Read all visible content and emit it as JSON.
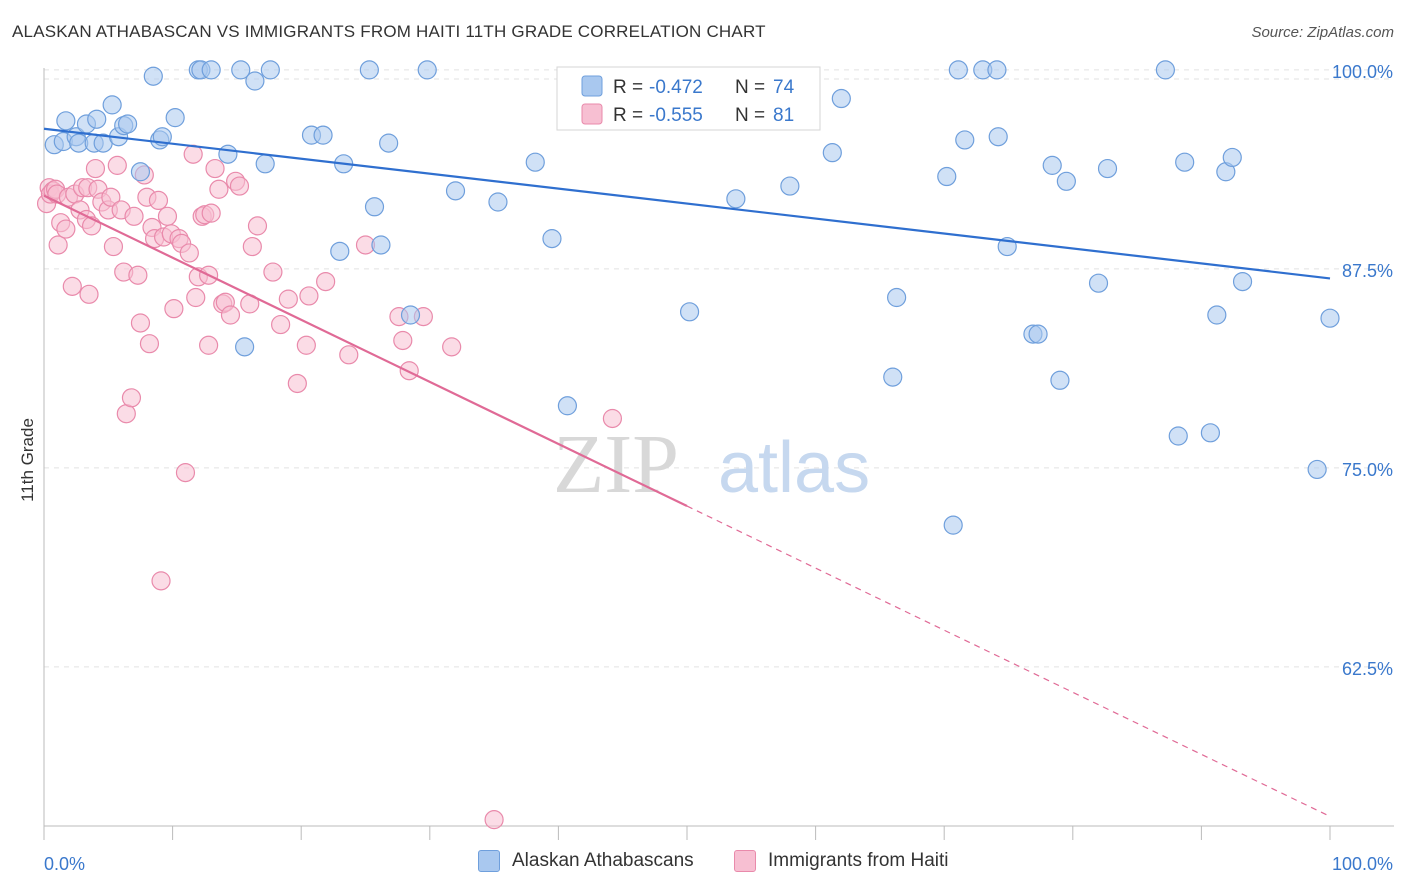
{
  "header": {
    "title": "ALASKAN ATHABASCAN VS IMMIGRANTS FROM HAITI 11TH GRADE CORRELATION CHART",
    "source": "Source: ZipAtlas.com"
  },
  "watermark": {
    "zip": "ZIP",
    "atlas": "atlas"
  },
  "legend": {
    "items": [
      {
        "r_label": "R =",
        "r_value": "-0.472",
        "n_label": "N =",
        "n_value": "74"
      },
      {
        "r_label": "R =",
        "r_value": "-0.555",
        "n_label": "N =",
        "n_value": "81"
      }
    ]
  },
  "colors": {
    "blue_fill": "#a9c8ef",
    "blue_stroke": "#6f9fdc",
    "blue_line": "#2f6fcf",
    "pink_fill": "#f7bfd2",
    "pink_stroke": "#e98aab",
    "pink_line": "#e06a96",
    "axis_text": "#3a78cc",
    "grid": "#e2e2e2"
  },
  "chart_data": {
    "type": "scatter",
    "title": "ALASKAN ATHABASCAN VS IMMIGRANTS FROM HAITI 11TH GRADE CORRELATION CHART",
    "xlabel": "",
    "ylabel": "11th Grade",
    "xlim": [
      0,
      100
    ],
    "ylim": [
      52.5,
      101.5
    ],
    "x_tick_labels": [
      "0.0%",
      "100.0%"
    ],
    "y_ticks": [
      {
        "value": 100,
        "label": "100.0%"
      },
      {
        "value": 87.5,
        "label": "87.5%"
      },
      {
        "value": 75,
        "label": "75.0%"
      },
      {
        "value": 62.5,
        "label": "62.5%"
      }
    ],
    "grid": true,
    "legend_position": "top-center",
    "series": [
      {
        "name": "Alaskan Athabascans",
        "color": "#a9c8ef",
        "trend": {
          "x": [
            0,
            100
          ],
          "y": [
            96.3,
            86.9
          ],
          "dashed_from": null
        },
        "points": [
          [
            0.8,
            95.3
          ],
          [
            1.5,
            95.5
          ],
          [
            1.7,
            96.8
          ],
          [
            2.5,
            95.8
          ],
          [
            2.7,
            95.4
          ],
          [
            3.3,
            96.6
          ],
          [
            3.9,
            95.4
          ],
          [
            4.1,
            96.9
          ],
          [
            4.6,
            95.4
          ],
          [
            5.3,
            97.8
          ],
          [
            5.8,
            95.8
          ],
          [
            6.2,
            96.5
          ],
          [
            6.5,
            96.6
          ],
          [
            7.5,
            93.6
          ],
          [
            8.5,
            99.6
          ],
          [
            9.0,
            95.6
          ],
          [
            9.2,
            95.8
          ],
          [
            10.2,
            97.0
          ],
          [
            12.0,
            100.0
          ],
          [
            12.2,
            100.0
          ],
          [
            14.3,
            94.7
          ],
          [
            15.3,
            100.0
          ],
          [
            16.4,
            99.3
          ],
          [
            17.2,
            94.1
          ],
          [
            17.6,
            100.0
          ],
          [
            20.8,
            95.9
          ],
          [
            21.7,
            95.9
          ],
          [
            23.0,
            88.6
          ],
          [
            23.3,
            94.1
          ],
          [
            25.3,
            100.0
          ],
          [
            25.7,
            91.4
          ],
          [
            26.2,
            89.0
          ],
          [
            26.8,
            95.4
          ],
          [
            28.5,
            84.6
          ],
          [
            29.8,
            100.0
          ],
          [
            32.0,
            92.4
          ],
          [
            35.3,
            91.7
          ],
          [
            38.2,
            94.2
          ],
          [
            39.5,
            89.4
          ],
          [
            40.7,
            78.9
          ],
          [
            15.6,
            82.6
          ],
          [
            50.2,
            84.8
          ],
          [
            53.8,
            91.9
          ],
          [
            58.0,
            92.7
          ],
          [
            62.0,
            98.2
          ],
          [
            61.3,
            94.8
          ],
          [
            66.0,
            80.7
          ],
          [
            66.3,
            85.7
          ],
          [
            70.2,
            93.3
          ],
          [
            70.7,
            71.4
          ],
          [
            71.1,
            100.0
          ],
          [
            71.6,
            95.6
          ],
          [
            73.0,
            100.0
          ],
          [
            74.1,
            100.0
          ],
          [
            74.2,
            95.8
          ],
          [
            74.9,
            88.9
          ],
          [
            76.9,
            83.4
          ],
          [
            77.3,
            83.4
          ],
          [
            78.4,
            94.0
          ],
          [
            79.0,
            80.5
          ],
          [
            79.5,
            93.0
          ],
          [
            82.0,
            86.6
          ],
          [
            82.7,
            93.8
          ],
          [
            87.2,
            100.0
          ],
          [
            88.2,
            77.0
          ],
          [
            88.7,
            94.2
          ],
          [
            90.7,
            77.2
          ],
          [
            91.2,
            84.6
          ],
          [
            91.9,
            93.6
          ],
          [
            92.4,
            94.5
          ],
          [
            93.2,
            86.7
          ],
          [
            100.0,
            84.4
          ],
          [
            99.0,
            74.9
          ],
          [
            13.0,
            100.0
          ]
        ]
      },
      {
        "name": "Immigrants from Haiti",
        "color": "#f7bfd2",
        "trend": {
          "x": [
            0,
            100
          ],
          "y": [
            92.1,
            53.1
          ],
          "dashed_from": 50
        },
        "points": [
          [
            0.2,
            91.6
          ],
          [
            0.4,
            92.6
          ],
          [
            0.5,
            92.2
          ],
          [
            0.7,
            92.4
          ],
          [
            0.9,
            92.5
          ],
          [
            1.0,
            92.2
          ],
          [
            1.1,
            89.0
          ],
          [
            1.3,
            90.4
          ],
          [
            1.7,
            90.0
          ],
          [
            1.9,
            92.0
          ],
          [
            2.2,
            86.4
          ],
          [
            2.4,
            92.2
          ],
          [
            2.8,
            91.2
          ],
          [
            3.0,
            92.6
          ],
          [
            3.3,
            90.6
          ],
          [
            3.4,
            92.6
          ],
          [
            3.5,
            85.9
          ],
          [
            3.7,
            90.2
          ],
          [
            4.0,
            93.8
          ],
          [
            4.2,
            92.5
          ],
          [
            4.5,
            91.7
          ],
          [
            5.0,
            91.2
          ],
          [
            5.2,
            92.0
          ],
          [
            5.4,
            88.9
          ],
          [
            5.7,
            94.0
          ],
          [
            6.0,
            91.2
          ],
          [
            6.2,
            87.3
          ],
          [
            6.4,
            78.4
          ],
          [
            6.8,
            79.4
          ],
          [
            7.0,
            90.8
          ],
          [
            7.3,
            87.1
          ],
          [
            7.5,
            84.1
          ],
          [
            7.8,
            93.4
          ],
          [
            8.0,
            92.0
          ],
          [
            8.2,
            82.8
          ],
          [
            8.4,
            90.1
          ],
          [
            8.6,
            89.4
          ],
          [
            8.9,
            91.8
          ],
          [
            9.1,
            67.9
          ],
          [
            9.3,
            89.5
          ],
          [
            9.6,
            90.8
          ],
          [
            9.9,
            89.7
          ],
          [
            10.1,
            85.0
          ],
          [
            10.5,
            89.4
          ],
          [
            10.7,
            89.1
          ],
          [
            11.0,
            74.7
          ],
          [
            11.3,
            88.5
          ],
          [
            11.6,
            94.7
          ],
          [
            11.8,
            85.7
          ],
          [
            12.0,
            87.0
          ],
          [
            12.3,
            90.8
          ],
          [
            12.5,
            90.9
          ],
          [
            12.8,
            87.1
          ],
          [
            12.8,
            82.7
          ],
          [
            13.0,
            91.0
          ],
          [
            13.3,
            93.8
          ],
          [
            13.6,
            92.5
          ],
          [
            13.9,
            85.3
          ],
          [
            14.1,
            85.4
          ],
          [
            14.5,
            84.6
          ],
          [
            14.9,
            93.0
          ],
          [
            15.2,
            92.7
          ],
          [
            16.0,
            85.3
          ],
          [
            16.2,
            88.9
          ],
          [
            16.6,
            90.2
          ],
          [
            17.8,
            87.3
          ],
          [
            18.4,
            84.0
          ],
          [
            19.0,
            85.6
          ],
          [
            19.7,
            80.3
          ],
          [
            20.4,
            82.7
          ],
          [
            20.6,
            85.8
          ],
          [
            21.9,
            86.7
          ],
          [
            23.7,
            82.1
          ],
          [
            25.0,
            89.0
          ],
          [
            27.6,
            84.5
          ],
          [
            27.9,
            83.0
          ],
          [
            28.4,
            81.1
          ],
          [
            29.5,
            84.5
          ],
          [
            31.7,
            82.6
          ],
          [
            44.2,
            78.1
          ],
          [
            35.0,
            52.9
          ]
        ]
      }
    ]
  }
}
